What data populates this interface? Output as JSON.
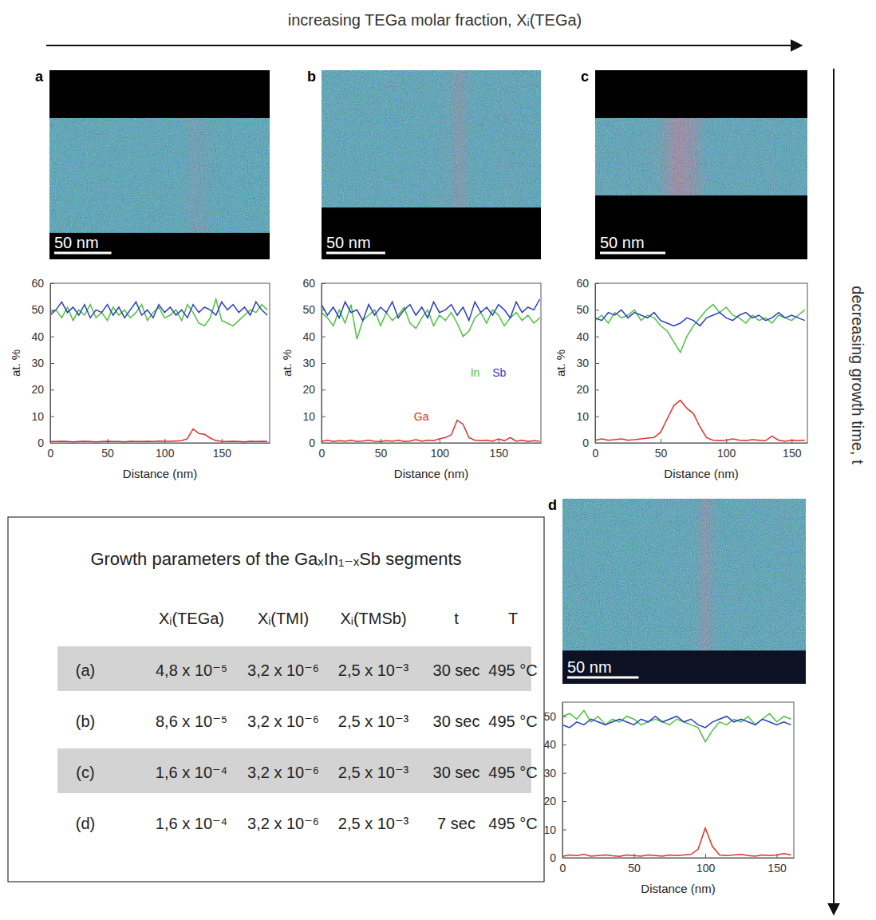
{
  "arrows": {
    "horizontal": "increasing TEGa molar fraction, Xᵢ(TEGa)",
    "vertical": "decreasing growth time, t"
  },
  "table": {
    "title": "Growth parameters of the GaₓIn₁₋ₓSb segments",
    "columns": [
      "Xᵢ(TEGa)",
      "Xᵢ(TMI)",
      "Xᵢ(TMSb)",
      "t",
      "T"
    ],
    "rows": [
      {
        "label": "(a)",
        "cells": [
          "4,8 x 10⁻⁵",
          "3,2 x 10⁻⁶",
          "2,5 x 10⁻³",
          "30 sec",
          "495 °C"
        ]
      },
      {
        "label": "(b)",
        "cells": [
          "8,6 x 10⁻⁵",
          "3,2 x 10⁻⁶",
          "2,5 x 10⁻³",
          "30 sec",
          "495 °C"
        ]
      },
      {
        "label": "(c)",
        "cells": [
          "1,6 x 10⁻⁴",
          "3,2 x 10⁻⁶",
          "2,5 x 10⁻³",
          "30 sec",
          "495 °C"
        ]
      },
      {
        "label": "(d)",
        "cells": [
          "1,6 x 10⁻⁴",
          "3,2 x 10⁻⁶",
          "2,5 x 10⁻³",
          "7 sec",
          "495 °C"
        ]
      }
    ]
  },
  "chart_data": [
    {
      "type": "line",
      "panel_label": "a",
      "x_label": "Distance (nm)",
      "y_label": "at. %",
      "scale_bar": {
        "label": "50 nm",
        "length": 50
      },
      "xlim": [
        0,
        192
      ],
      "xticks": [
        0,
        50,
        100,
        150
      ],
      "ylim": [
        0,
        60
      ],
      "yticks": [
        0,
        10,
        20,
        30,
        40,
        50,
        60
      ],
      "x": [
        0,
        5,
        10,
        15,
        20,
        25,
        30,
        35,
        40,
        45,
        50,
        55,
        60,
        65,
        70,
        75,
        80,
        85,
        90,
        95,
        100,
        105,
        110,
        115,
        120,
        125,
        130,
        135,
        140,
        145,
        150,
        155,
        160,
        165,
        170,
        175,
        180,
        185,
        190
      ],
      "series": [
        {
          "color": "#4ec23f",
          "values": [
            49,
            50,
            47,
            51,
            46,
            50,
            48,
            52,
            47,
            49,
            46,
            51,
            48,
            50,
            47,
            49,
            52,
            46,
            49,
            51,
            47,
            48,
            50,
            46,
            52,
            49,
            45,
            44,
            47,
            54,
            46,
            45,
            44,
            46,
            48,
            50,
            49,
            52,
            50
          ]
        },
        {
          "color": "#2b3fc4",
          "values": [
            48,
            50,
            53,
            49,
            51,
            48,
            52,
            47,
            50,
            49,
            52,
            48,
            51,
            47,
            50,
            53,
            48,
            50,
            47,
            52,
            49,
            51,
            48,
            50,
            47,
            52,
            49,
            51,
            50,
            48,
            53,
            50,
            52,
            49,
            51,
            48,
            53,
            50,
            48
          ]
        },
        {
          "color": "#e0322b",
          "values": [
            0.5,
            0.5,
            0.6,
            0.5,
            0.4,
            0.5,
            0.6,
            0.5,
            0.4,
            0.5,
            0.6,
            0.5,
            0.5,
            0.4,
            0.6,
            0.5,
            0.5,
            0.6,
            0.5,
            0.7,
            0.6,
            0.6,
            0.7,
            0.8,
            1.5,
            5.2,
            3.5,
            3.2,
            1.8,
            0.8,
            0.6,
            0.5,
            0.6,
            0.5,
            0.4,
            0.6,
            0.5,
            0.6,
            0.5
          ]
        }
      ]
    },
    {
      "type": "line",
      "panel_label": "b",
      "x_label": "Distance (nm)",
      "y_label": "at. %",
      "scale_bar": {
        "label": "50 nm",
        "length": 50
      },
      "xlim": [
        0,
        186
      ],
      "xticks": [
        0,
        50,
        100,
        150
      ],
      "ylim": [
        0,
        60
      ],
      "yticks": [
        0,
        10,
        20,
        30,
        40,
        50,
        60
      ],
      "x": [
        0,
        5,
        10,
        15,
        20,
        25,
        30,
        35,
        40,
        45,
        50,
        55,
        60,
        65,
        70,
        75,
        80,
        85,
        90,
        95,
        100,
        105,
        110,
        115,
        120,
        125,
        130,
        135,
        140,
        145,
        150,
        155,
        160,
        165,
        170,
        175,
        180,
        185
      ],
      "series": [
        {
          "name": "In",
          "color": "#4ec23f",
          "values": [
            49,
            47,
            44,
            50,
            45,
            52,
            39,
            46,
            48,
            50,
            44,
            49,
            46,
            48,
            51,
            45,
            43,
            47,
            50,
            44,
            48,
            46,
            49,
            45,
            40,
            42,
            47,
            49,
            45,
            50,
            48,
            44,
            47,
            49,
            46,
            48,
            45,
            47
          ]
        },
        {
          "name": "Sb",
          "color": "#2b3fc4",
          "values": [
            52,
            48,
            51,
            47,
            53,
            49,
            50,
            46,
            52,
            48,
            51,
            49,
            53,
            47,
            50,
            52,
            48,
            51,
            47,
            53,
            49,
            50,
            52,
            48,
            51,
            46,
            53,
            49,
            51,
            48,
            52,
            50,
            47,
            53,
            49,
            51,
            50,
            54
          ]
        },
        {
          "name": "Ga",
          "color": "#e0322b",
          "values": [
            0.5,
            1,
            0.5,
            0.8,
            0.6,
            1,
            0.5,
            0.7,
            1,
            0.6,
            0.5,
            0.8,
            0.6,
            1,
            0.5,
            0.7,
            1.2,
            0.6,
            1,
            0.8,
            1.5,
            2,
            3,
            8.5,
            7,
            2,
            1,
            0.8,
            1,
            0.6,
            1.5,
            0.8,
            2,
            0.6,
            1,
            0.5,
            0.8,
            0.6
          ]
        }
      ]
    },
    {
      "type": "line",
      "panel_label": "c",
      "x_label": "Distance (nm)",
      "y_label": "at. %",
      "scale_bar": {
        "label": "50 nm",
        "length": 50
      },
      "xlim": [
        0,
        162
      ],
      "xticks": [
        0,
        50,
        100,
        150
      ],
      "ylim": [
        0,
        60
      ],
      "yticks": [
        0,
        10,
        20,
        30,
        40,
        50,
        60
      ],
      "x": [
        0,
        5,
        10,
        15,
        20,
        25,
        30,
        35,
        40,
        45,
        50,
        55,
        60,
        65,
        70,
        75,
        80,
        85,
        90,
        95,
        100,
        105,
        110,
        115,
        120,
        125,
        130,
        135,
        140,
        145,
        150,
        155,
        160
      ],
      "series": [
        {
          "color": "#4ec23f",
          "values": [
            46,
            48,
            45,
            49,
            47,
            48,
            50,
            46,
            48,
            47,
            44,
            42,
            38,
            34,
            40,
            44,
            47,
            50,
            52,
            49,
            51,
            48,
            47,
            45,
            48,
            46,
            47,
            45,
            48,
            47,
            46,
            48,
            50
          ]
        },
        {
          "color": "#2b3fc4",
          "values": [
            47,
            46,
            49,
            48,
            50,
            47,
            49,
            48,
            47,
            49,
            46,
            45,
            44,
            45,
            47,
            46,
            44,
            47,
            48,
            49,
            47,
            46,
            48,
            49,
            47,
            48,
            46,
            47,
            49,
            47,
            48,
            47,
            46
          ]
        },
        {
          "color": "#e0322b",
          "values": [
            1,
            1.5,
            1,
            1.2,
            1.5,
            1,
            1.2,
            1.5,
            1.8,
            2,
            4,
            9,
            14,
            16,
            13,
            11,
            6,
            2,
            1,
            0.8,
            1,
            1.5,
            1,
            0.8,
            1.2,
            1,
            0.8,
            2.5,
            1,
            0.6,
            1,
            0.8,
            1
          ]
        }
      ]
    },
    {
      "type": "line",
      "panel_label": "d",
      "x_label": "Distance (nm)",
      "y_label": "at. %",
      "scale_bar": {
        "label": "50 nm",
        "length": 50
      },
      "xlim": [
        0,
        162
      ],
      "xticks": [
        0,
        50,
        100,
        150
      ],
      "ylim": [
        0,
        55
      ],
      "yticks": [
        0,
        10,
        20,
        30,
        40,
        50
      ],
      "x": [
        0,
        5,
        10,
        15,
        20,
        25,
        30,
        35,
        40,
        45,
        50,
        55,
        60,
        65,
        70,
        75,
        80,
        85,
        90,
        95,
        100,
        105,
        110,
        115,
        120,
        125,
        130,
        135,
        140,
        145,
        150,
        155,
        160
      ],
      "series": [
        {
          "color": "#4ec23f",
          "values": [
            50,
            51,
            49,
            52,
            48,
            50,
            47,
            49,
            48,
            50,
            49,
            47,
            48,
            49,
            48,
            47,
            49,
            48,
            47,
            46,
            41,
            45,
            48,
            47,
            49,
            48,
            50,
            47,
            49,
            51,
            48,
            50,
            49
          ]
        },
        {
          "color": "#2b3fc4",
          "values": [
            47,
            46,
            48,
            47,
            49,
            48,
            47,
            48,
            49,
            48,
            47,
            49,
            48,
            50,
            48,
            49,
            50,
            48,
            49,
            47,
            46,
            48,
            49,
            50,
            48,
            49,
            48,
            47,
            49,
            48,
            47,
            48,
            47
          ]
        },
        {
          "color": "#e0322b",
          "values": [
            0.5,
            1,
            0.8,
            1.2,
            0.6,
            0.8,
            1,
            0.7,
            0.5,
            1,
            0.8,
            0.6,
            1,
            0.8,
            0.6,
            1,
            0.8,
            1,
            1.2,
            3,
            10.5,
            4,
            1,
            0.8,
            1,
            1.2,
            0.8,
            0.6,
            1,
            0.8,
            1,
            1.5,
            1
          ]
        }
      ]
    }
  ]
}
